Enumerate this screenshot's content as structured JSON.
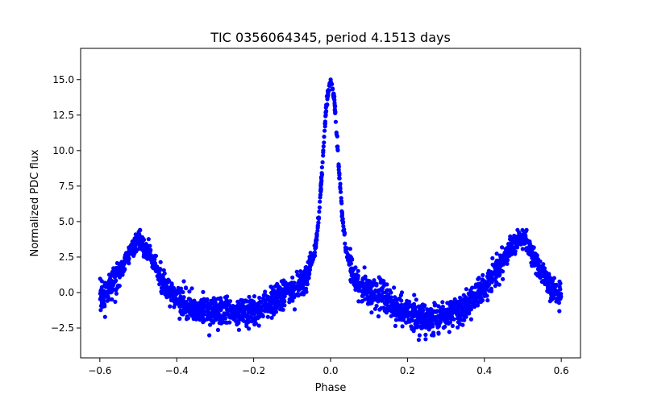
{
  "chart_data": {
    "type": "scatter",
    "title": "TIC 0356064345, period 4.1513 days",
    "xlabel": "Phase",
    "ylabel": "Normalized PDC flux",
    "xlim": [
      -0.65,
      0.65
    ],
    "ylim": [
      -4.6,
      17.2
    ],
    "x_ticks": [
      -0.6,
      -0.4,
      -0.2,
      0.0,
      0.2,
      0.4,
      0.6
    ],
    "x_tick_labels": [
      "−0.6",
      "−0.4",
      "−0.2",
      "0.0",
      "0.2",
      "0.4",
      "0.6"
    ],
    "y_ticks": [
      -2.5,
      0.0,
      2.5,
      5.0,
      7.5,
      10.0,
      12.5,
      15.0
    ],
    "y_tick_labels": [
      "−2.5",
      "0.0",
      "2.5",
      "5.0",
      "7.5",
      "10.0",
      "12.5",
      "15.0"
    ],
    "grid": false,
    "legend": "none",
    "marker_color": "#0000ff",
    "series": [
      {
        "x": [
          -0.6,
          -0.58,
          -0.56,
          -0.54,
          -0.52,
          -0.5,
          -0.48,
          -0.46,
          -0.44,
          -0.42,
          -0.4,
          -0.38,
          -0.35,
          -0.3,
          -0.25,
          -0.2,
          -0.15,
          -0.1,
          -0.08,
          -0.06,
          -0.04,
          -0.03,
          -0.02,
          -0.01,
          0.0,
          0.01,
          0.02,
          0.03,
          0.04,
          0.06,
          0.08,
          0.1,
          0.15,
          0.2,
          0.25,
          0.3,
          0.35,
          0.38,
          0.4,
          0.42,
          0.44,
          0.46,
          0.48,
          0.5,
          0.52,
          0.54,
          0.56,
          0.58,
          0.6
        ],
        "y": [
          -0.4,
          0.2,
          1.0,
          1.8,
          2.9,
          3.8,
          3.0,
          2.1,
          1.0,
          0.0,
          -0.4,
          -0.8,
          -1.2,
          -1.4,
          -1.5,
          -1.3,
          -0.7,
          0.2,
          0.5,
          1.2,
          3.0,
          5.5,
          9.5,
          13.5,
          15.2,
          13.5,
          9.5,
          5.5,
          3.0,
          1.0,
          0.3,
          0.1,
          -0.6,
          -1.4,
          -1.9,
          -1.7,
          -1.0,
          -0.2,
          0.3,
          1.0,
          1.9,
          2.8,
          3.5,
          3.8,
          3.0,
          1.9,
          1.0,
          0.1,
          -0.4
        ],
        "scatter_spread": 0.9
      }
    ]
  }
}
